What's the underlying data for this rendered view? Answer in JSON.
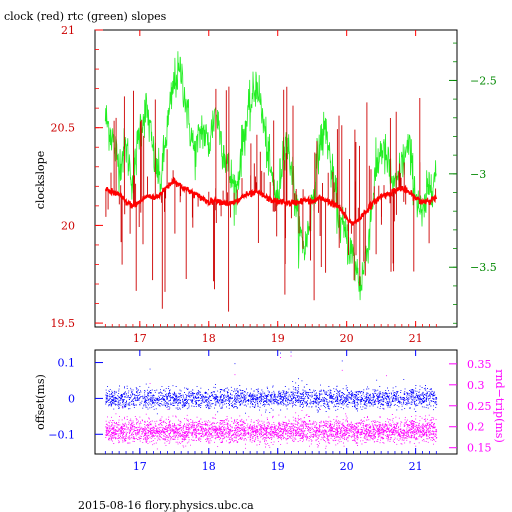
{
  "colors": {
    "red": "#ff0000",
    "darkred": "#cc0000",
    "green": "#22ee22",
    "darkgreen": "#008800",
    "blue": "#0000ff",
    "magenta": "#ff00ff",
    "black": "#000000"
  },
  "footer": "2015-08-16 flory.physics.ubc.ca",
  "chart_data": [
    {
      "type": "line",
      "title": "clock (red) rtc (green) slopes",
      "ylabel_left": "clockslope",
      "xlim": [
        16.35,
        21.6
      ],
      "ylim_left": [
        19.48,
        21.0
      ],
      "ylim_right": [
        -3.82,
        -2.23
      ],
      "x_ticks": [
        "17",
        "18",
        "19",
        "20",
        "21"
      ],
      "y_ticks_left": [
        "19.5",
        "20",
        "20.5",
        "21"
      ],
      "y_ticks_right": [
        "-3.5",
        "-3",
        "-2.5"
      ],
      "series": [
        {
          "color": "green",
          "axis": "right",
          "x": [
            16.5,
            16.6,
            16.7,
            16.8,
            16.9,
            17.0,
            17.1,
            17.2,
            17.3,
            17.4,
            17.5,
            17.6,
            17.7,
            17.8,
            17.9,
            18.0,
            18.1,
            18.2,
            18.3,
            18.4,
            18.5,
            18.6,
            18.7,
            18.8,
            18.9,
            19.0,
            19.1,
            19.2,
            19.3,
            19.4,
            19.5,
            19.6,
            19.7,
            19.8,
            19.9,
            20.0,
            20.1,
            20.2,
            20.3,
            20.4,
            20.5,
            20.6,
            20.7,
            20.8,
            20.9,
            21.0,
            21.1,
            21.2,
            21.3
          ],
          "y": [
            -2.7,
            -2.8,
            -2.95,
            -2.85,
            -3.05,
            -2.75,
            -2.65,
            -2.9,
            -3.05,
            -2.75,
            -2.5,
            -2.45,
            -2.7,
            -2.9,
            -2.75,
            -2.85,
            -2.65,
            -2.85,
            -3.0,
            -3.1,
            -2.8,
            -2.65,
            -2.5,
            -2.75,
            -3.0,
            -3.15,
            -2.8,
            -2.95,
            -3.3,
            -3.4,
            -3.15,
            -2.85,
            -2.75,
            -3.05,
            -3.25,
            -3.35,
            -3.45,
            -3.6,
            -3.4,
            -3.05,
            -2.85,
            -2.95,
            -3.1,
            -2.95,
            -2.85,
            -3.1,
            -3.25,
            -3.05,
            -3.0
          ]
        },
        {
          "color": "red",
          "axis": "left",
          "x": [
            16.5,
            16.6,
            16.7,
            16.8,
            16.9,
            17.0,
            17.1,
            17.2,
            17.3,
            17.4,
            17.5,
            17.6,
            17.7,
            17.8,
            17.9,
            18.0,
            18.1,
            18.2,
            18.3,
            18.4,
            18.5,
            18.6,
            18.7,
            18.8,
            18.9,
            19.0,
            19.1,
            19.2,
            19.3,
            19.4,
            19.5,
            19.6,
            19.7,
            19.8,
            19.9,
            20.0,
            20.1,
            20.2,
            20.3,
            20.4,
            20.5,
            20.6,
            20.7,
            20.8,
            20.9,
            21.0,
            21.1,
            21.2,
            21.3
          ],
          "y": [
            20.18,
            20.17,
            20.16,
            20.12,
            20.1,
            20.12,
            20.15,
            20.14,
            20.16,
            20.2,
            20.23,
            20.2,
            20.18,
            20.16,
            20.14,
            20.12,
            20.13,
            20.12,
            20.11,
            20.12,
            20.15,
            20.16,
            20.17,
            20.15,
            20.13,
            20.12,
            20.12,
            20.11,
            20.12,
            20.13,
            20.12,
            20.14,
            20.13,
            20.11,
            20.09,
            20.03,
            20.01,
            20.04,
            20.08,
            20.12,
            20.15,
            20.16,
            20.18,
            20.19,
            20.17,
            20.14,
            20.12,
            20.13,
            20.14
          ]
        }
      ]
    },
    {
      "type": "scatter",
      "ylabel_left": "offset(ms)",
      "ylabel_right": "rnd−trip(ms)",
      "xlim": [
        16.35,
        21.6
      ],
      "ylim_left": [
        -0.155,
        0.135
      ],
      "ylim_right": [
        0.135,
        0.383
      ],
      "x_ticks": [
        "17",
        "18",
        "19",
        "20",
        "21"
      ],
      "y_ticks_left": [
        "-0.1",
        "0",
        "0.1"
      ],
      "y_ticks_right": [
        "0.15",
        "0.2",
        "0.25",
        "0.3",
        "0.35"
      ],
      "series": [
        {
          "color": "blue",
          "axis": "left",
          "center": 0.0,
          "spread": 0.025,
          "outlier_max": 0.13
        },
        {
          "color": "magenta",
          "axis": "right",
          "center": 0.19,
          "spread": 0.025,
          "outlier_max": 0.37
        }
      ]
    }
  ]
}
